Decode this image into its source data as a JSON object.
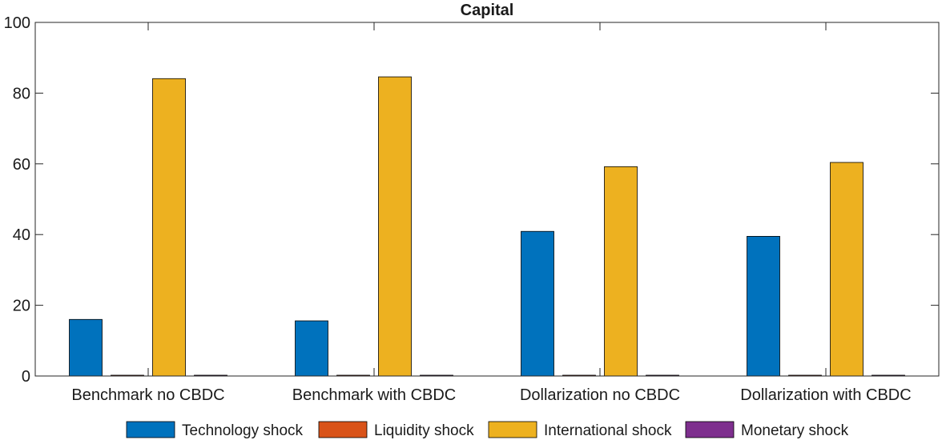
{
  "chart_data": {
    "type": "bar",
    "title": "Capital",
    "xlabel": "",
    "ylabel": "",
    "ylim": [
      0,
      100
    ],
    "yticks": [
      0,
      20,
      40,
      60,
      80,
      100
    ],
    "grid": false,
    "legend_position": "bottom",
    "categories": [
      "Benchmark no CBDC",
      "Benchmark with CBDC",
      "Dollarization no CBDC",
      "Dollarization with CBDC"
    ],
    "series": [
      {
        "name": "Technology shock",
        "color": "#0072BD",
        "values": [
          16.0,
          15.6,
          40.9,
          39.5
        ]
      },
      {
        "name": "Liquidity shock",
        "color": "#D95319",
        "values": [
          0.1,
          0.1,
          0.1,
          0.1
        ]
      },
      {
        "name": "International shock",
        "color": "#EDB120",
        "values": [
          84.1,
          84.6,
          59.2,
          60.4
        ]
      },
      {
        "name": "Monetary shock",
        "color": "#7E2F8E",
        "values": [
          0.1,
          0.1,
          0.1,
          0.1
        ]
      }
    ]
  }
}
